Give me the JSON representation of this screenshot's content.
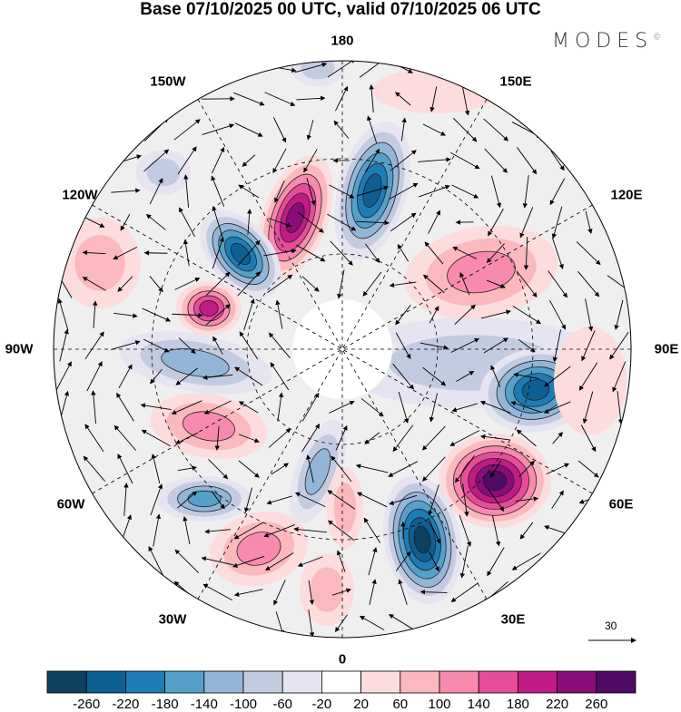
{
  "title": "Base 07/10/2025 00 UTC, valid 07/10/2025 06 UTC",
  "logo": {
    "text": "MODES",
    "mark": "©"
  },
  "longitude_labels": {
    "lon_180": "180",
    "lon_150w": "150W",
    "lon_150e": "150E",
    "lon_120w": "120W",
    "lon_120e": "120E",
    "lon_90w": "90W",
    "lon_90e": "90E",
    "lon_60w": "60W",
    "lon_60e": "60E",
    "lon_30w": "30W",
    "lon_30e": "30E",
    "lon_0": "0"
  },
  "reference_vector": {
    "label": "30"
  },
  "colorbar": {
    "ticks": [
      "-260",
      "-220",
      "-180",
      "-140",
      "-100",
      "-60",
      "-20",
      "20",
      "60",
      "100",
      "140",
      "180",
      "220",
      "260"
    ],
    "colors": [
      "#0d3f5e",
      "#0e5f93",
      "#1d7cb5",
      "#55a0c9",
      "#93b5d8",
      "#c3cbe0",
      "#e6e4f0",
      "#ffffff",
      "#fcdcdc",
      "#fbb8bd",
      "#f78aad",
      "#e54d99",
      "#c01b87",
      "#8a0c78",
      "#4f0a66"
    ]
  }
}
